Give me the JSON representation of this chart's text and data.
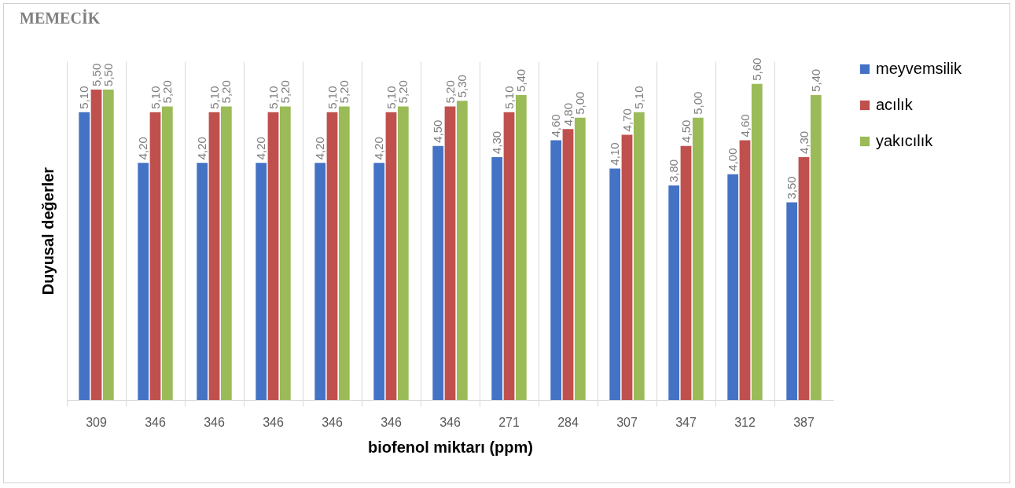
{
  "chart_data": {
    "type": "bar",
    "title": "MEMECİK",
    "xlabel": "biofenol miktarı (ppm)",
    "ylabel": "Duyusal değerler",
    "categories": [
      "309",
      "346",
      "346",
      "346",
      "346",
      "346",
      "346",
      "271",
      "284",
      "307",
      "347",
      "312",
      "387"
    ],
    "series": [
      {
        "name": "meyvemsilik",
        "color": "#4472c4",
        "values": [
          5.1,
          4.2,
          4.2,
          4.2,
          4.2,
          4.2,
          4.5,
          4.3,
          4.6,
          4.1,
          3.8,
          4.0,
          3.5
        ],
        "value_labels": [
          "5,10",
          "4,20",
          "4,20",
          "4,20",
          "4,20",
          "4,20",
          "4,50",
          "4,30",
          "4,60",
          "4,10",
          "3,80",
          "4,00",
          "3,50"
        ]
      },
      {
        "name": "acılık",
        "color": "#c0504d",
        "values": [
          5.5,
          5.1,
          5.1,
          5.1,
          5.1,
          5.1,
          5.2,
          5.1,
          4.8,
          4.7,
          4.5,
          4.6,
          4.3
        ],
        "value_labels": [
          "5,50",
          "5,10",
          "5,10",
          "5,10",
          "5,10",
          "5,10",
          "5,20",
          "5,10",
          "4,80",
          "4,70",
          "4,50",
          "4,60",
          "4,30"
        ]
      },
      {
        "name": "yakıcılık",
        "color": "#9bbb59",
        "values": [
          5.5,
          5.2,
          5.2,
          5.2,
          5.2,
          5.2,
          5.3,
          5.4,
          5.0,
          5.1,
          5.0,
          5.6,
          5.4
        ],
        "value_labels": [
          "5,50",
          "5,20",
          "5,20",
          "5,20",
          "5,20",
          "5,20",
          "5,30",
          "5,40",
          "5,00",
          "5,10",
          "5,00",
          "5,60",
          "5,40"
        ]
      }
    ],
    "ylim": [
      0,
      6
    ],
    "grid": "x",
    "legend": "right",
    "tick_labels": "x"
  }
}
